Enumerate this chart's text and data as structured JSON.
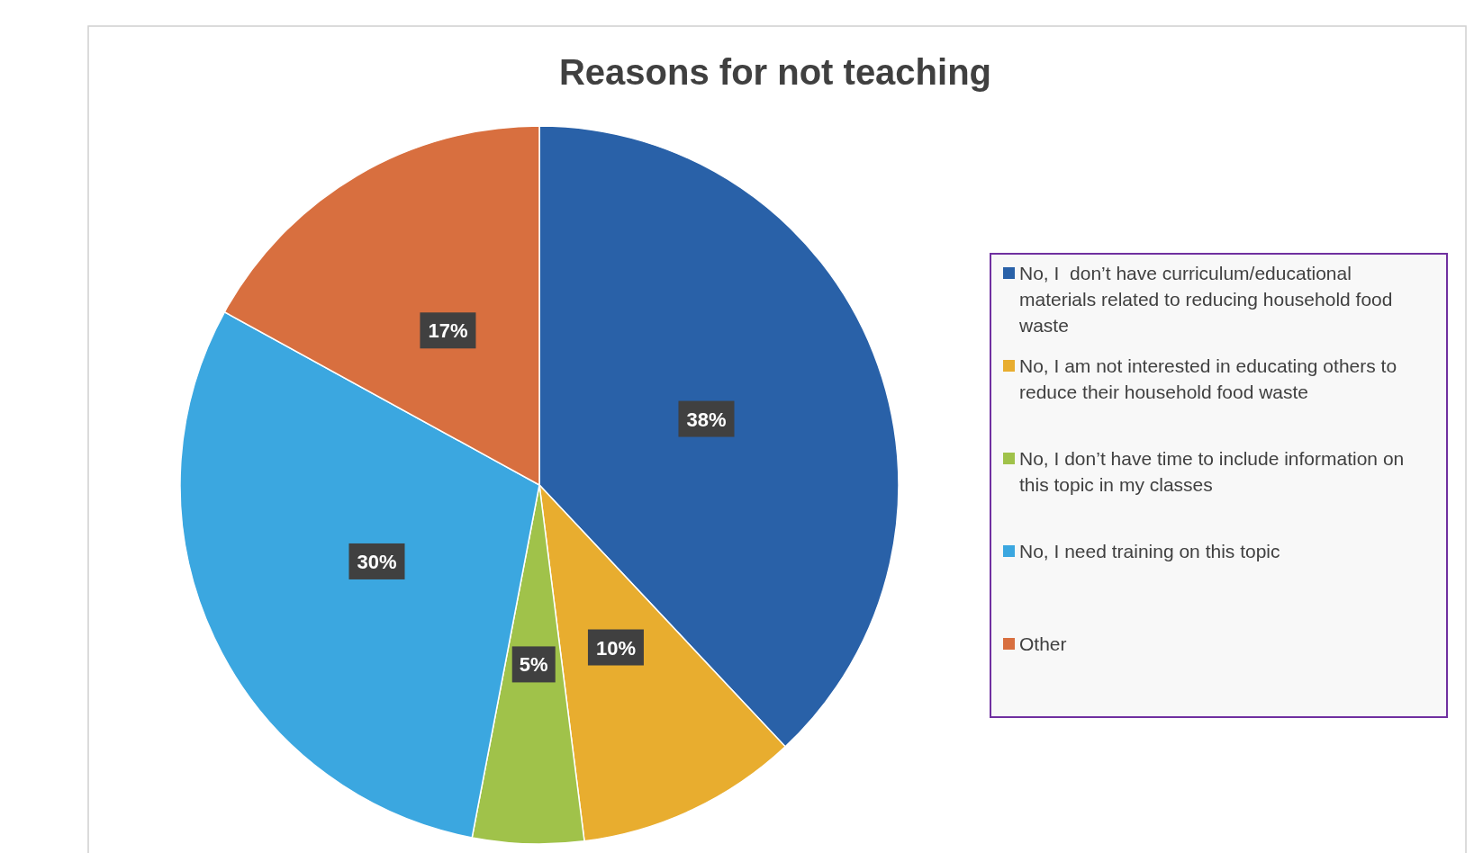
{
  "chart_data": {
    "type": "pie",
    "title": "Reasons for not teaching",
    "categories": [
      "No, I  don’t have curriculum/educational materials related to reducing household food waste",
      "No, I am not interested in educating others to reduce their household food waste",
      "No, I don’t have time to include information on this topic in my classes",
      "No, I need training on this topic",
      "Other"
    ],
    "values": [
      38,
      10,
      5,
      30,
      17
    ],
    "value_labels": [
      "38%",
      "10%",
      "5%",
      "30%",
      "17%"
    ],
    "colors": [
      "#2961a8",
      "#e8ad2f",
      "#a0c24a",
      "#3ba7e0",
      "#d86f3f"
    ],
    "legend": "right"
  }
}
